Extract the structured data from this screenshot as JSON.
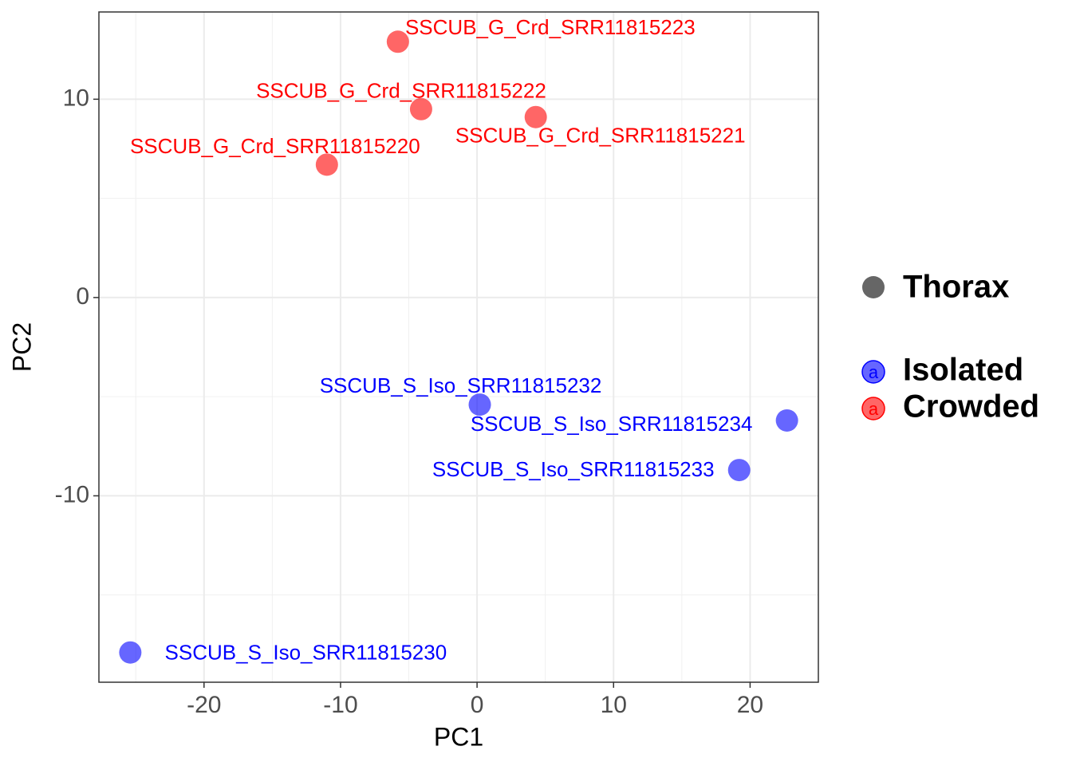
{
  "chart_data": {
    "type": "scatter",
    "xlabel": "PC1",
    "ylabel": "PC2",
    "xlim": [
      -27.7,
      25.0
    ],
    "ylim": [
      -19.4,
      14.4
    ],
    "xticks": [
      -20,
      -10,
      0,
      10,
      20
    ],
    "yticks": [
      -10,
      0,
      10
    ],
    "xminor": [
      -25,
      -15,
      -5,
      5,
      15
    ],
    "yminor": [
      -15,
      -5,
      5
    ],
    "grid": true,
    "legend": "right",
    "shape_legend": {
      "name": "Thorax",
      "color": "#666666"
    },
    "series": [
      {
        "name": "Isolated",
        "color": "#0000ff",
        "x": [
          -25.4,
          0.2,
          19.2,
          22.7
        ],
        "values": [
          -17.9,
          -5.4,
          -8.7,
          -6.2
        ],
        "labels": [
          "SSCUB_S_Iso_SRR11815230",
          "SSCUB_S_Iso_SRR11815232",
          "SSCUB_S_Iso_SRR11815233",
          "SSCUB_S_Iso_SRR11815234"
        ]
      },
      {
        "name": "Crowded",
        "color": "#ff0000",
        "x": [
          -11.0,
          4.3,
          -4.1,
          -5.8
        ],
        "values": [
          6.7,
          9.1,
          9.5,
          12.9
        ],
        "labels": [
          "SSCUB_G_Crd_SRR11815220",
          "SSCUB_G_Crd_SRR11815221",
          "SSCUB_G_Crd_SRR11815222",
          "SSCUB_G_Crd_SRR11815223"
        ]
      }
    ]
  }
}
